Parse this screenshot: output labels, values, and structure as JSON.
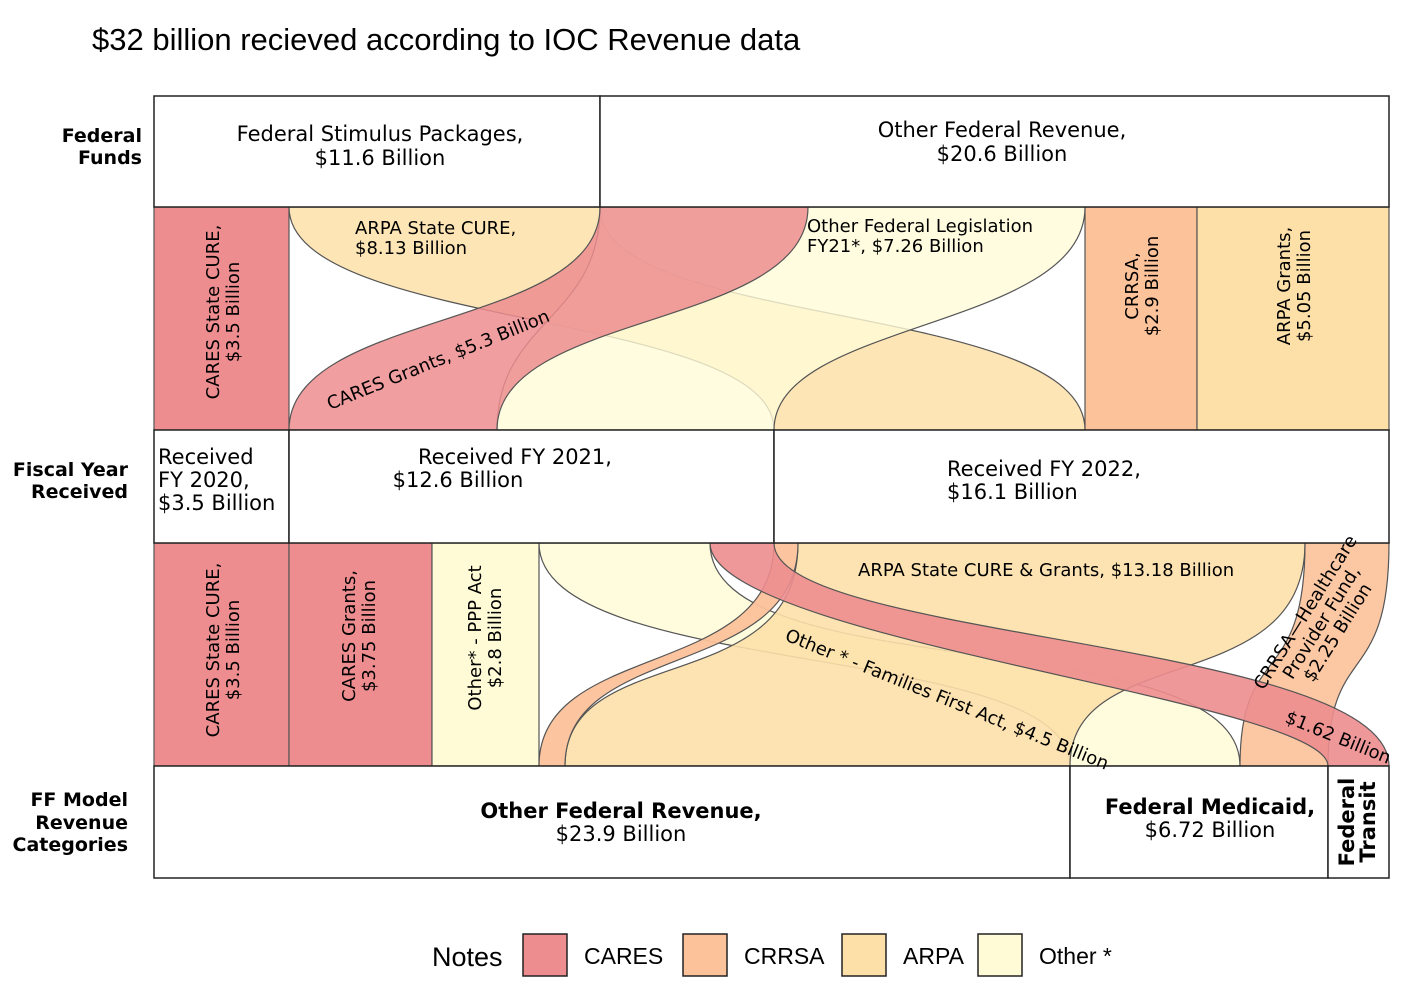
{
  "title": "$32 billion recieved according to IOC Revenue data",
  "colors": {
    "CARES": "#ed8d8f",
    "CRRSA": "#fcc29a",
    "ARPA": "#fde0a8",
    "Other": "#fffbd7"
  },
  "row_labels": {
    "federal_funds": [
      "Federal",
      "Funds"
    ],
    "fiscal_year": [
      "Fiscal Year",
      "Received"
    ],
    "ff_model": [
      "FF Model",
      "Revenue",
      "Categories"
    ]
  },
  "federal_funds": {
    "stimulus": [
      "Federal Stimulus Packages,",
      "$11.6 Billion"
    ],
    "other": [
      "Other Federal Revenue,",
      "$20.6 Billion"
    ]
  },
  "upper_flows": {
    "cares_state_cure": [
      "CARES State CURE,",
      "$3.5 Billion"
    ],
    "arpa_state_cure": [
      "ARPA State CURE,",
      "$8.13 Billion"
    ],
    "cares_grants": "CARES Grants, $5.3 Billion",
    "other_fed_leg": [
      "Other Federal Legislation",
      "FY21*, $7.26 Billion"
    ],
    "crrsa": [
      "CRRSA,",
      "$2.9 Billion"
    ],
    "arpa_grants": [
      "ARPA Grants,",
      "$5.05 Billion"
    ]
  },
  "fiscal_years": {
    "fy2020": [
      "Received",
      "FY 2020,",
      "$3.5 Billion"
    ],
    "fy2021": [
      "Received FY 2021,",
      "$12.6 Billion"
    ],
    "fy2022": [
      "Received FY 2022,",
      "$16.1 Billion"
    ]
  },
  "lower_flows": {
    "cares_state_cure": [
      "CARES State CURE,",
      "$3.5 Billion"
    ],
    "cares_grants": [
      "CARES Grants,",
      "$3.75 Billion"
    ],
    "ppp": [
      "Other* - PPP Act",
      "$2.8 Billion"
    ],
    "arpa_state_cure_grants": "ARPA State CURE & Grants, $13.18 Billion",
    "families_first": "Other * - Families First Act, $4.5 Billion",
    "crrsa_healthcare": [
      "CRRSA—Healthcare",
      "Provider Fund,",
      "$2.25 Billion"
    ],
    "cares_162": "$1.62 Billion"
  },
  "ff_model": {
    "other": {
      "name": "Other Federal Revenue,",
      "value": "$23.9 Billion"
    },
    "medicaid": {
      "name": "Federal Medicaid,",
      "value": "$6.72 Billion"
    },
    "transit": [
      "Federal",
      "Transit"
    ]
  },
  "legend": {
    "title": "Notes",
    "items": [
      {
        "label": "CARES",
        "color": "#ed8d8f"
      },
      {
        "label": "CRRSA",
        "color": "#fcc29a"
      },
      {
        "label": "ARPA",
        "color": "#fde0a8"
      },
      {
        "label": "Other *",
        "color": "#fffbd7"
      }
    ]
  }
}
